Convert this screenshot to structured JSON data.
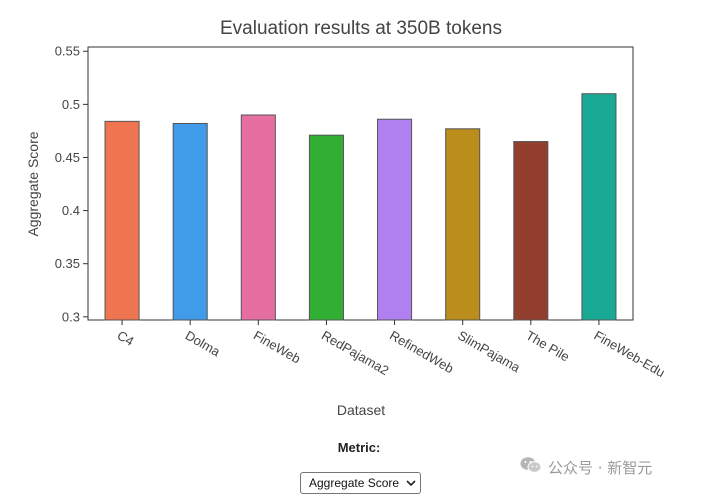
{
  "chart_data": {
    "type": "bar",
    "title": "Evaluation results at 350B tokens",
    "xlabel": "Dataset",
    "ylabel": "Aggregate Score",
    "categories": [
      "C4",
      "Dolma",
      "FineWeb",
      "RedPajama2",
      "RefinedWeb",
      "SlimPajama",
      "The Pile",
      "FineWeb-Edu"
    ],
    "values": [
      0.484,
      0.482,
      0.49,
      0.471,
      0.486,
      0.477,
      0.465,
      0.51
    ],
    "colors": [
      "#EE7550",
      "#409BE8",
      "#E66FA2",
      "#31AF35",
      "#B180F0",
      "#BA8D1C",
      "#933F2F",
      "#19AA96"
    ],
    "ylim": [
      0.297,
      0.554
    ],
    "yticks": [
      0.3,
      0.35,
      0.4,
      0.45,
      0.5,
      0.55
    ],
    "ytick_labels": [
      "0.3",
      "0.35",
      "0.4",
      "0.45",
      "0.5",
      "0.55"
    ],
    "grid": false,
    "legend": "none"
  },
  "controls": {
    "metric_label": "Metric:",
    "metric_selected": "Aggregate Score"
  },
  "watermark": {
    "text": "公众号 · 新智元",
    "icon": "wechat-icon"
  }
}
